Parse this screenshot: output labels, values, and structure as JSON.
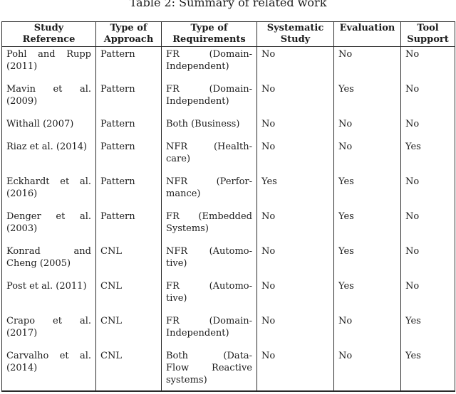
{
  "page": {
    "caption": "Table 2: Summary of related work"
  },
  "table": {
    "columns": [
      {
        "id": "reference",
        "label_lines": [
          "Study",
          "Reference"
        ]
      },
      {
        "id": "approach",
        "label_lines": [
          "Type of",
          "Approach"
        ]
      },
      {
        "id": "requirements",
        "label_lines": [
          "Type of",
          "Requirements"
        ]
      },
      {
        "id": "systematic",
        "label_lines": [
          "Systematic",
          "Study"
        ]
      },
      {
        "id": "evaluation",
        "label_lines": [
          "Evaluation"
        ]
      },
      {
        "id": "tool",
        "label_lines": [
          "Tool",
          "Support"
        ]
      }
    ],
    "rows": [
      {
        "reference": [
          "Pohl and Rupp",
          "(2011)"
        ],
        "approach": "Pattern",
        "requirements": [
          "FR (Domain-",
          "Independent)"
        ],
        "systematic": "No",
        "evaluation": "No",
        "tool": "No"
      },
      {
        "reference": [
          "Mavin et al.",
          "(2009)"
        ],
        "approach": "Pattern",
        "requirements": [
          "FR (Domain-",
          "Independent)"
        ],
        "systematic": "No",
        "evaluation": "Yes",
        "tool": "No"
      },
      {
        "reference": [
          "Withall (2007)"
        ],
        "approach": "Pattern",
        "requirements": [
          "Both (Business)"
        ],
        "systematic": "No",
        "evaluation": "No",
        "tool": "No"
      },
      {
        "reference": [
          "Riaz et al. (2014)"
        ],
        "approach": "Pattern",
        "requirements": [
          "NFR (Health-",
          "care)"
        ],
        "systematic": "No",
        "evaluation": "No",
        "tool": "Yes"
      },
      {
        "reference": [
          "Eckhardt et al.",
          "(2016)"
        ],
        "approach": "Pattern",
        "requirements": [
          "NFR (Perfor-",
          "mance)"
        ],
        "systematic": "Yes",
        "evaluation": "Yes",
        "tool": "No"
      },
      {
        "reference": [
          "Denger et al.",
          "(2003)"
        ],
        "approach": "Pattern",
        "requirements": [
          "FR (Embedded",
          "Systems)"
        ],
        "systematic": "No",
        "evaluation": "Yes",
        "tool": "No"
      },
      {
        "reference": [
          "Konrad and",
          "Cheng (2005)"
        ],
        "approach": "CNL",
        "requirements": [
          "NFR (Automo-",
          "tive)"
        ],
        "systematic": "No",
        "evaluation": "Yes",
        "tool": "No"
      },
      {
        "reference": [
          "Post et al. (2011)"
        ],
        "approach": "CNL",
        "requirements": [
          "FR (Automo-",
          "tive)"
        ],
        "systematic": "No",
        "evaluation": "Yes",
        "tool": "No"
      },
      {
        "reference": [
          "Crapo et al.",
          "(2017)"
        ],
        "approach": "CNL",
        "requirements": [
          "FR (Domain-",
          "Independent)"
        ],
        "systematic": "No",
        "evaluation": "No",
        "tool": "Yes"
      },
      {
        "reference": [
          "Carvalho et al.",
          "(2014)"
        ],
        "approach": "CNL",
        "requirements": [
          "Both (Data-",
          "Flow Reactive",
          "systems)"
        ],
        "systematic": "No",
        "evaluation": "No",
        "tool": "Yes"
      }
    ],
    "colors": {
      "text": "#1c1c1c",
      "border": "#2a2a2a",
      "background": "#ffffff"
    }
  }
}
